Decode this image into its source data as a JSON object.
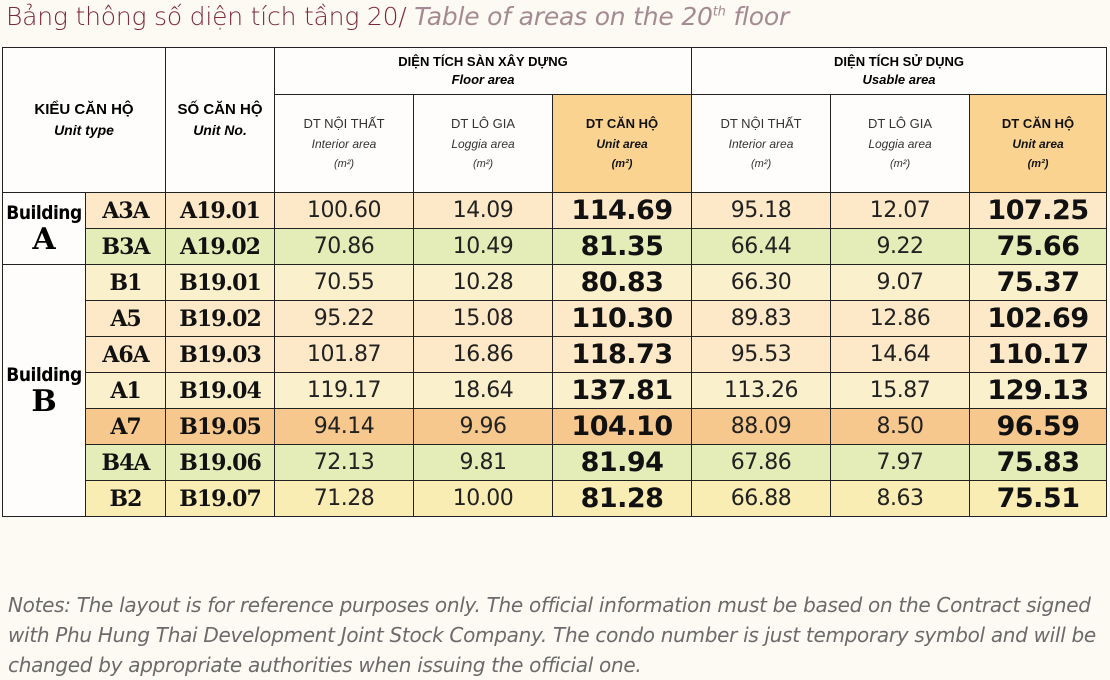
{
  "title": {
    "vi": "Bảng thông số diện tích tầng 20/",
    "en_prefix": "Table of areas on the 20",
    "en_sup": "th",
    "en_suffix": " floor"
  },
  "header": {
    "unit_type": {
      "vi": "KIỂU CĂN HỘ",
      "en": "Unit type"
    },
    "unit_no": {
      "vi": "SỐ CĂN HỘ",
      "en": "Unit No."
    },
    "floor_area": {
      "vi": "DIỆN TÍCH SÀN XÂY DỰNG",
      "en": "Floor area"
    },
    "usable_area": {
      "vi": "DIỆN TÍCH SỬ DỤNG",
      "en": "Usable area"
    },
    "interior": {
      "vi": "DT NỘI THẤT",
      "en": "Interior area",
      "unit": "(m²)"
    },
    "loggia": {
      "vi": "DT LÔ GIA",
      "en": "Loggia area",
      "unit": "(m²)"
    },
    "unit_area": {
      "vi": "DT CĂN HỘ",
      "en": "Unit area",
      "unit": "(m²)"
    }
  },
  "buildings": [
    {
      "label": "Building",
      "letter": "A"
    },
    {
      "label": "Building",
      "letter": "B"
    }
  ],
  "rows": [
    {
      "type": "A3A",
      "unit": "A19.01",
      "f_int": "100.60",
      "f_log": "14.09",
      "f_unit": "114.69",
      "u_int": "95.18",
      "u_log": "12.07",
      "u_unit": "107.25"
    },
    {
      "type": "B3A",
      "unit": "A19.02",
      "f_int": "70.86",
      "f_log": "10.49",
      "f_unit": "81.35",
      "u_int": "66.44",
      "u_log": "9.22",
      "u_unit": "75.66"
    },
    {
      "type": "B1",
      "unit": "B19.01",
      "f_int": "70.55",
      "f_log": "10.28",
      "f_unit": "80.83",
      "u_int": "66.30",
      "u_log": "9.07",
      "u_unit": "75.37"
    },
    {
      "type": "A5",
      "unit": "B19.02",
      "f_int": "95.22",
      "f_log": "15.08",
      "f_unit": "110.30",
      "u_int": "89.83",
      "u_log": "12.86",
      "u_unit": "102.69"
    },
    {
      "type": "A6A",
      "unit": "B19.03",
      "f_int": "101.87",
      "f_log": "16.86",
      "f_unit": "118.73",
      "u_int": "95.53",
      "u_log": "14.64",
      "u_unit": "110.17"
    },
    {
      "type": "A1",
      "unit": "B19.04",
      "f_int": "119.17",
      "f_log": "18.64",
      "f_unit": "137.81",
      "u_int": "113.26",
      "u_log": "15.87",
      "u_unit": "129.13"
    },
    {
      "type": "A7",
      "unit": "B19.05",
      "f_int": "94.14",
      "f_log": "9.96",
      "f_unit": "104.10",
      "u_int": "88.09",
      "u_log": "8.50",
      "u_unit": "96.59"
    },
    {
      "type": "B4A",
      "unit": "B19.06",
      "f_int": "72.13",
      "f_log": "9.81",
      "f_unit": "81.94",
      "u_int": "67.86",
      "u_log": "7.97",
      "u_unit": "75.83"
    },
    {
      "type": "B2",
      "unit": "B19.07",
      "f_int": "71.28",
      "f_log": "10.00",
      "f_unit": "81.28",
      "u_int": "66.88",
      "u_log": "8.63",
      "u_unit": "75.51"
    }
  ],
  "notes": "Notes: The layout is for reference purposes only. The official information must be based on the Contract signed with Phu Hung Thai Development Joint Stock Company. The condo number is just temporary symbol and will be changed by appropriate authorities when issuing the official one."
}
